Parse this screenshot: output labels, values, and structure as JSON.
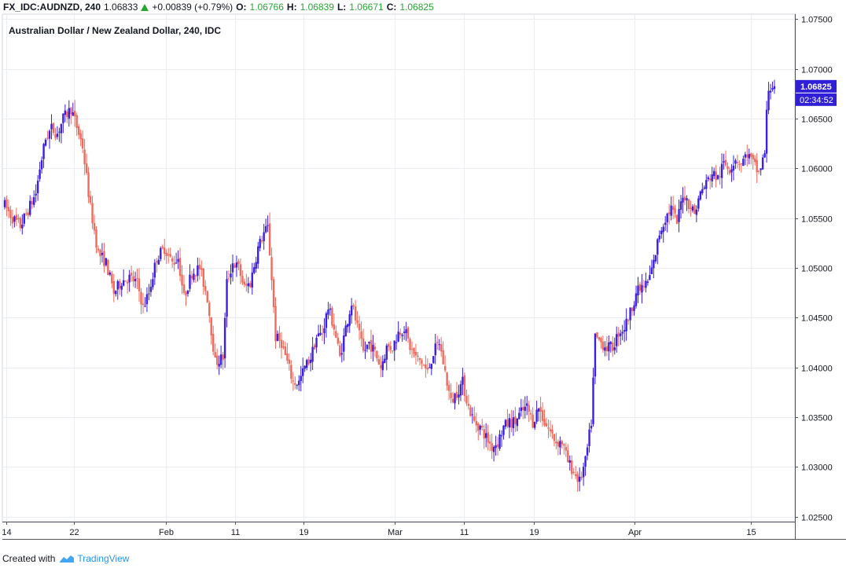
{
  "header": {
    "symbol": "FX_IDC:AUDNZD, 240",
    "last": "1.06833",
    "change": "+0.00839 (+0.79%)",
    "o_label": "O:",
    "o_value": "1.06766",
    "h_label": "H:",
    "h_value": "1.06839",
    "l_label": "L:",
    "l_value": "1.06671",
    "c_label": "C:",
    "c_value": "1.06825"
  },
  "chart_title": "Australian Dollar / New Zealand Dollar, 240, IDC",
  "price_tag": "1.06825",
  "countdown_tag": "02:34:52",
  "footer": {
    "created_with": "Created with",
    "brand": "TradingView"
  },
  "colors": {
    "up": "#3a1fe0",
    "down": "#ef6a5c",
    "grid": "#e9edf2",
    "accent": "#2f1fd6",
    "brand": "#2196f3"
  },
  "chart_data": {
    "type": "candlestick",
    "title": "Australian Dollar / New Zealand Dollar, 240, IDC",
    "xlabel": "",
    "ylabel": "",
    "ylim": [
      1.0245,
      1.0755
    ],
    "yticks": [
      "1.02500",
      "1.03000",
      "1.03500",
      "1.04000",
      "1.04500",
      "1.05000",
      "1.05500",
      "1.06000",
      "1.06500",
      "1.07000",
      "1.07500"
    ],
    "xtick_labels": [
      "14",
      "22",
      "Feb",
      "11",
      "19",
      "Mar",
      "11",
      "19",
      "Apr",
      "15"
    ],
    "grid": true,
    "last_price": 1.06825,
    "series": [
      {
        "name": "AUDNZD",
        "path": [
          [
            0,
            1.0563
          ],
          [
            4,
            1.055
          ],
          [
            8,
            1.0542
          ],
          [
            12,
            1.0558
          ],
          [
            16,
            1.0575
          ],
          [
            18,
            1.06
          ],
          [
            21,
            1.063
          ],
          [
            24,
            1.064
          ],
          [
            27,
            1.0635
          ],
          [
            30,
            1.065
          ],
          [
            34,
            1.066
          ],
          [
            36,
            1.0648
          ],
          [
            40,
            1.0622
          ],
          [
            44,
            1.056
          ],
          [
            48,
            1.0515
          ],
          [
            52,
            1.0505
          ],
          [
            56,
            1.0475
          ],
          [
            60,
            1.0487
          ],
          [
            64,
            1.049
          ],
          [
            68,
            1.0485
          ],
          [
            71,
            1.046
          ],
          [
            74,
            1.0475
          ],
          [
            78,
            1.051
          ],
          [
            82,
            1.052
          ],
          [
            86,
            1.0505
          ],
          [
            89,
            1.051
          ],
          [
            92,
            1.047
          ],
          [
            96,
            1.0495
          ],
          [
            100,
            1.05
          ],
          [
            104,
            1.047
          ],
          [
            108,
            1.0405
          ],
          [
            112,
            1.041
          ],
          [
            114,
            1.0485
          ],
          [
            117,
            1.0505
          ],
          [
            120,
            1.05
          ],
          [
            123,
            1.048
          ],
          [
            126,
            1.0485
          ],
          [
            130,
            1.052
          ],
          [
            133,
            1.0535
          ],
          [
            135,
            1.054
          ],
          [
            137,
            1.049
          ],
          [
            139,
            1.043
          ],
          [
            142,
            1.0425
          ],
          [
            145,
            1.0405
          ],
          [
            148,
            1.0385
          ],
          [
            151,
            1.0385
          ],
          [
            154,
            1.04
          ],
          [
            157,
            1.041
          ],
          [
            160,
            1.043
          ],
          [
            163,
            1.0435
          ],
          [
            166,
            1.046
          ],
          [
            169,
            1.044
          ],
          [
            172,
            1.041
          ],
          [
            175,
            1.044
          ],
          [
            178,
            1.0465
          ],
          [
            181,
            1.044
          ],
          [
            184,
            1.0415
          ],
          [
            187,
            1.0425
          ],
          [
            190,
            1.0415
          ],
          [
            193,
            1.04
          ],
          [
            196,
            1.042
          ],
          [
            199,
            1.042
          ],
          [
            202,
            1.0435
          ],
          [
            205,
            1.044
          ],
          [
            208,
            1.042
          ],
          [
            211,
            1.041
          ],
          [
            214,
            1.0405
          ],
          [
            217,
            1.0395
          ],
          [
            220,
            1.0415
          ],
          [
            223,
            1.0425
          ],
          [
            226,
            1.0395
          ],
          [
            229,
            1.0365
          ],
          [
            232,
            1.0375
          ],
          [
            235,
            1.0385
          ],
          [
            238,
            1.036
          ],
          [
            241,
            1.0345
          ],
          [
            244,
            1.034
          ],
          [
            247,
            1.033
          ],
          [
            250,
            1.032
          ],
          [
            253,
            1.0325
          ],
          [
            256,
            1.034
          ],
          [
            259,
            1.0345
          ],
          [
            262,
            1.0345
          ],
          [
            265,
            1.0355
          ],
          [
            268,
            1.036
          ],
          [
            271,
            1.0345
          ],
          [
            274,
            1.036
          ],
          [
            277,
            1.0345
          ],
          [
            280,
            1.0335
          ],
          [
            283,
            1.0325
          ],
          [
            286,
            1.0325
          ],
          [
            289,
            1.0305
          ],
          [
            292,
            1.0295
          ],
          [
            295,
            1.0285
          ],
          [
            298,
            1.0305
          ],
          [
            301,
            1.0345
          ],
          [
            303,
            1.043
          ],
          [
            306,
            1.0425
          ],
          [
            309,
            1.042
          ],
          [
            312,
            1.042
          ],
          [
            315,
            1.0435
          ],
          [
            318,
            1.044
          ],
          [
            321,
            1.0455
          ],
          [
            324,
            1.0475
          ],
          [
            327,
            1.048
          ],
          [
            330,
            1.0485
          ],
          [
            333,
            1.0505
          ],
          [
            336,
            1.0535
          ],
          [
            339,
            1.055
          ],
          [
            342,
            1.056
          ],
          [
            345,
            1.0545
          ],
          [
            348,
            1.0575
          ],
          [
            351,
            1.0565
          ],
          [
            354,
            1.0555
          ],
          [
            357,
            1.0575
          ],
          [
            360,
            1.0585
          ],
          [
            363,
            1.0595
          ],
          [
            366,
            1.059
          ],
          [
            369,
            1.0605
          ],
          [
            372,
            1.06
          ],
          [
            375,
            1.061
          ],
          [
            378,
            1.0605
          ],
          [
            381,
            1.0615
          ],
          [
            384,
            1.0605
          ],
          [
            387,
            1.0595
          ],
          [
            390,
            1.0615
          ],
          [
            391,
            1.0655
          ],
          [
            392,
            1.068
          ],
          [
            394,
            1.06825
          ]
        ]
      }
    ]
  }
}
